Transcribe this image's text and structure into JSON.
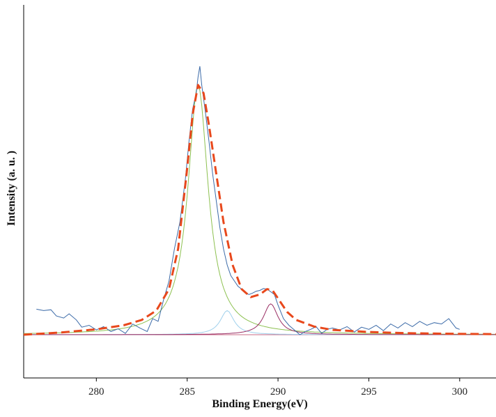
{
  "chart_data": {
    "type": "line",
    "title": "",
    "xlabel": "Binding Energy(eV)",
    "ylabel": "Intensity (a. u. )",
    "xlim": [
      276,
      302
    ],
    "ylim": [
      0,
      1
    ],
    "grid": false,
    "legend": "none",
    "x_ticks": [
      280,
      285,
      290,
      295,
      300
    ],
    "x_tick_labels": [
      "280",
      "285",
      "290",
      "295",
      "300"
    ],
    "y_ticks": [],
    "colors": {
      "raw": "#3b6aa8",
      "envelope": "#e8481c",
      "peak1": "#8cc04f",
      "peak2": "#9fd0ec",
      "peak3": "#9a2f64",
      "baseline": "#c86a86",
      "axis": "#000000"
    },
    "series": [
      {
        "role": "raw",
        "x": [
          276.7,
          277.1,
          277.5,
          277.8,
          278.2,
          278.5,
          278.9,
          279.2,
          279.6,
          280.0,
          280.4,
          280.8,
          281.2,
          281.6,
          282.0,
          282.4,
          282.8,
          283.1,
          283.4,
          283.7,
          284.0,
          284.3,
          284.6,
          284.9,
          285.1,
          285.3,
          285.5,
          285.6,
          285.7,
          285.8,
          286.0,
          286.2,
          286.4,
          286.6,
          286.8,
          287.0,
          287.2,
          287.4,
          287.6,
          287.8,
          288.0,
          288.2,
          288.4,
          288.6,
          288.8,
          289.0,
          289.2,
          289.4,
          289.6,
          289.8,
          290.0,
          290.3,
          290.6,
          290.9,
          291.2,
          291.5,
          291.8,
          292.1,
          292.4,
          292.7,
          293.0,
          293.4,
          293.8,
          294.2,
          294.6,
          295.0,
          295.4,
          295.8,
          296.2,
          296.6,
          297.0,
          297.4,
          297.8,
          298.2,
          298.6,
          299.0,
          299.4,
          299.8,
          300.0
        ],
        "y": [
          0.095,
          0.09,
          0.093,
          0.07,
          0.062,
          0.078,
          0.055,
          0.028,
          0.035,
          0.018,
          0.03,
          0.012,
          0.022,
          0.005,
          0.04,
          0.025,
          0.012,
          0.06,
          0.05,
          0.13,
          0.2,
          0.32,
          0.42,
          0.58,
          0.72,
          0.84,
          0.9,
          0.96,
          1.0,
          0.93,
          0.83,
          0.72,
          0.6,
          0.5,
          0.4,
          0.32,
          0.26,
          0.22,
          0.2,
          0.18,
          0.17,
          0.155,
          0.15,
          0.155,
          0.162,
          0.165,
          0.172,
          0.17,
          0.16,
          0.15,
          0.11,
          0.06,
          0.035,
          0.018,
          0.0,
          0.012,
          0.02,
          0.03,
          0.005,
          0.02,
          0.025,
          0.018,
          0.03,
          0.01,
          0.028,
          0.02,
          0.035,
          0.015,
          0.04,
          0.025,
          0.045,
          0.03,
          0.05,
          0.035,
          0.045,
          0.04,
          0.06,
          0.025,
          0.02
        ]
      },
      {
        "role": "envelope",
        "x": [
          276.0,
          278.0,
          280.0,
          281.5,
          282.5,
          283.3,
          284.0,
          284.5,
          285.0,
          285.3,
          285.6,
          285.9,
          286.2,
          286.6,
          287.0,
          287.5,
          288.0,
          288.5,
          289.0,
          289.4,
          289.7,
          290.0,
          290.5,
          291.0,
          292.0,
          293.0,
          295.0,
          297.0,
          299.0,
          302.0
        ],
        "y": [
          0.0,
          0.008,
          0.02,
          0.035,
          0.055,
          0.09,
          0.17,
          0.32,
          0.62,
          0.82,
          0.93,
          0.9,
          0.78,
          0.6,
          0.42,
          0.26,
          0.17,
          0.14,
          0.15,
          0.17,
          0.165,
          0.135,
          0.085,
          0.055,
          0.03,
          0.018,
          0.01,
          0.006,
          0.004,
          0.002
        ]
      }
    ],
    "fit_peaks": [
      {
        "role": "peak1",
        "center": 285.6,
        "height": 0.93,
        "width": 1.35
      },
      {
        "role": "peak2",
        "center": 287.2,
        "height": 0.09,
        "width": 0.9
      },
      {
        "role": "peak3",
        "center": 289.6,
        "height": 0.115,
        "width": 0.95
      }
    ]
  }
}
